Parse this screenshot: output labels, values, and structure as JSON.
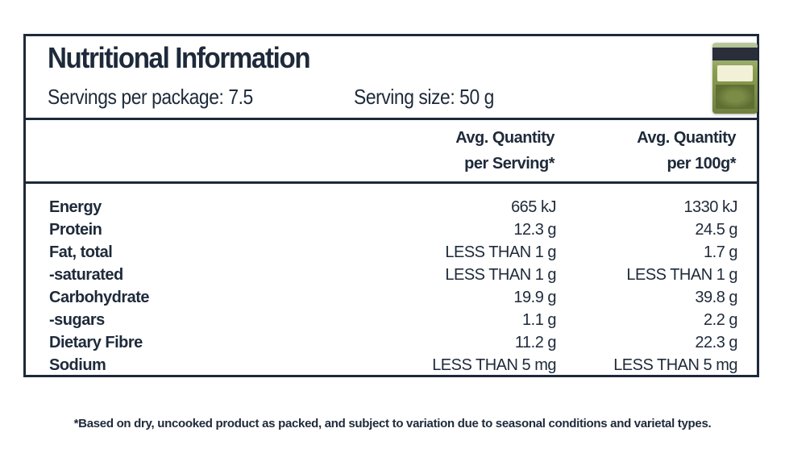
{
  "panel": {
    "title": "Nutritional Information",
    "servings_per_package": "Servings per package: 7.5",
    "serving_size": "Serving size: 50 g",
    "product_image": "lentils-package-image"
  },
  "columns": [
    {
      "line1": "Avg. Quantity",
      "line2": "per Serving*"
    },
    {
      "line1": "Avg. Quantity",
      "line2": "per 100g*"
    }
  ],
  "rows": [
    {
      "name": "Energy",
      "per_serving": "665 kJ",
      "per_100g": "1330 kJ"
    },
    {
      "name": "Protein",
      "per_serving": "12.3 g",
      "per_100g": "24.5 g"
    },
    {
      "name": "Fat, total",
      "per_serving": "LESS THAN 1 g",
      "per_100g": "1.7 g"
    },
    {
      "name": "-saturated",
      "per_serving": "LESS THAN 1 g",
      "per_100g": "LESS THAN 1 g"
    },
    {
      "name": "Carbohydrate",
      "per_serving": "19.9 g",
      "per_100g": "39.8 g"
    },
    {
      "name": "-sugars",
      "per_serving": "1.1 g",
      "per_100g": "2.2 g"
    },
    {
      "name": "Dietary Fibre",
      "per_serving": "11.2 g",
      "per_100g": "22.3 g"
    },
    {
      "name": "Sodium",
      "per_serving": "LESS THAN 5 mg",
      "per_100g": "LESS THAN 5 mg"
    }
  ],
  "footnote": "*Based on dry, uncooked product as packed, and subject to variation due to seasonal conditions and varietal types.",
  "colors": {
    "ink": "#1e2a3a",
    "background": "#ffffff"
  }
}
